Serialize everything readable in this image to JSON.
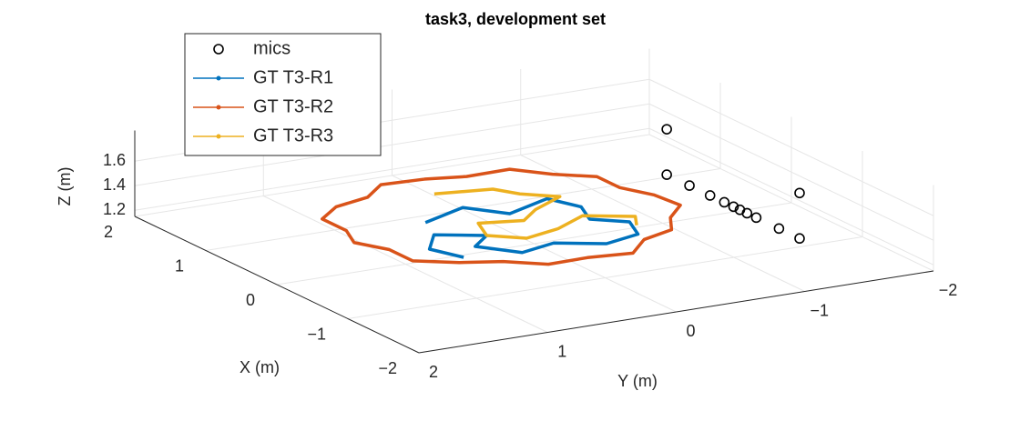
{
  "chart_data": {
    "type": "line3d",
    "title": "task3,  development set",
    "xlabel": "X (m)",
    "ylabel": "Y (m)",
    "zlabel": "Z (m)",
    "xlim": [
      -2,
      2
    ],
    "ylim": [
      -2,
      2
    ],
    "zlim": [
      1.15,
      1.85
    ],
    "xticks": [
      {
        "value": -2,
        "label": "−2"
      },
      {
        "value": -1,
        "label": "−1"
      },
      0,
      1,
      2
    ],
    "yticks": [
      {
        "value": -2,
        "label": "−2"
      },
      {
        "value": -1,
        "label": "−1"
      },
      0,
      1,
      2
    ],
    "zticks": [
      1.2,
      1.4,
      1.6
    ],
    "grid": true,
    "legend": "upper left",
    "series": [
      {
        "name": "mics",
        "marker": "circle",
        "line": false,
        "color": "#000000",
        "x": [
          0.65,
          0.33,
          0.04,
          -0.16,
          -0.29,
          -0.38,
          -0.48,
          -0.61,
          -0.93,
          -1.22,
          0.65,
          -1.22
        ],
        "y": [
          -1.39,
          -1.39,
          -1.39,
          -1.39,
          -1.39,
          -1.39,
          -1.39,
          -1.39,
          -1.39,
          -1.39,
          -1.39,
          -1.39
        ],
        "z": [
          1.3,
          1.3,
          1.3,
          1.3,
          1.3,
          1.3,
          1.3,
          1.3,
          1.3,
          1.3,
          1.67,
          1.67
        ]
      },
      {
        "name": "GT T3-R1",
        "marker": "dot",
        "line": true,
        "color": "#0072BD",
        "x": [
          -0.1,
          0.1,
          -0.2,
          0.0,
          -0.3,
          -0.6,
          -0.8,
          -1.1,
          -1.2,
          -1.0,
          -1.1,
          -0.8,
          -0.6,
          -0.4,
          -0.7,
          -1.0
        ],
        "y": [
          0.9,
          0.5,
          0.3,
          -0.1,
          -0.2,
          -0.1,
          -0.3,
          -0.2,
          0.1,
          0.4,
          0.7,
          0.9,
          0.7,
          1.0,
          1.2,
          1.1
        ],
        "z": [
          1.5,
          1.5,
          1.5,
          1.5,
          1.5,
          1.5,
          1.5,
          1.5,
          1.5,
          1.5,
          1.5,
          1.5,
          1.5,
          1.5,
          1.5,
          1.5
        ]
      },
      {
        "name": "GT T3-R2",
        "marker": "dot",
        "line": true,
        "color": "#D95319",
        "x": [
          0.86,
          0.89,
          0.66,
          0.56,
          0.34,
          0.0,
          -0.29,
          -0.57,
          -0.9,
          -1.1,
          -1.23,
          -1.45,
          -1.44,
          -1.5,
          -1.24,
          -1.12,
          -0.85,
          -0.61,
          -0.29,
          -0.01,
          0.31,
          0.52,
          0.78,
          0.77,
          0.86
        ],
        "y": [
          0.38,
          0.7,
          0.93,
          1.23,
          1.46,
          1.46,
          1.56,
          1.44,
          1.44,
          1.19,
          0.92,
          0.69,
          0.38,
          0.06,
          -0.17,
          -0.45,
          -0.59,
          -0.8,
          -0.77,
          -0.66,
          -0.66,
          -0.43,
          -0.24,
          0.1,
          0.38
        ],
        "z": [
          1.5,
          1.5,
          1.5,
          1.5,
          1.5,
          1.5,
          1.5,
          1.5,
          1.5,
          1.5,
          1.5,
          1.5,
          1.5,
          1.5,
          1.5,
          1.5,
          1.5,
          1.5,
          1.5,
          1.5,
          1.5,
          1.5,
          1.5,
          1.5,
          1.5
        ]
      },
      {
        "name": "GT T3-R3",
        "marker": "dot",
        "line": true,
        "color": "#EDB120",
        "x": [
          0.5,
          0.4,
          0.2,
          0.0,
          -0.2,
          -0.4,
          -0.3,
          -0.6,
          -0.8,
          -0.7,
          -0.5,
          -0.7,
          -0.9
        ],
        "y": [
          0.5,
          0.1,
          0.0,
          -0.2,
          0.1,
          0.3,
          0.6,
          0.7,
          0.5,
          0.2,
          -0.1,
          -0.4,
          -0.3
        ],
        "z": [
          1.5,
          1.5,
          1.5,
          1.5,
          1.5,
          1.5,
          1.5,
          1.5,
          1.5,
          1.5,
          1.5,
          1.5,
          1.5
        ]
      }
    ]
  }
}
